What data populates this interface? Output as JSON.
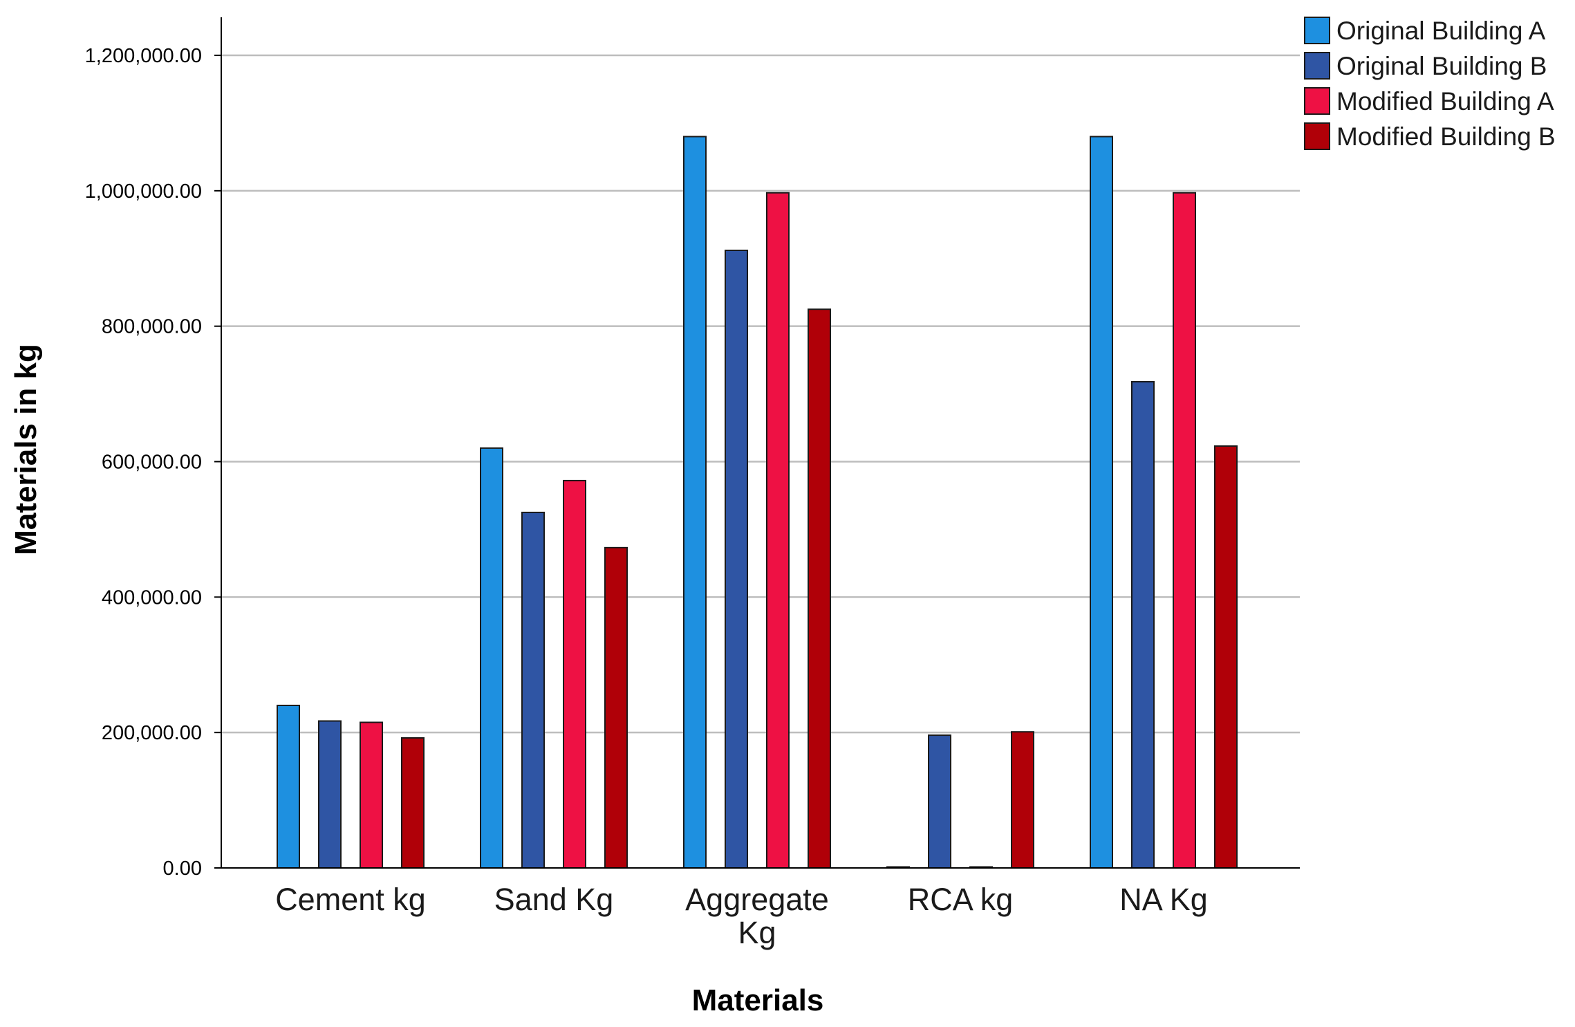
{
  "chart_data": {
    "type": "bar",
    "title": "",
    "xlabel": "Materials",
    "ylabel": "Materials in kg",
    "ylim": [
      0,
      1200000
    ],
    "yticks": [
      "0.00",
      "200,000.00",
      "400,000.00",
      "600,000.00",
      "800,000.00",
      "1,000,000.00",
      "1,200,000.00"
    ],
    "grid": true,
    "legend_position": "top-right",
    "categories": [
      [
        "Cement kg"
      ],
      [
        "Sand Kg"
      ],
      [
        "Aggregate",
        "Kg"
      ],
      [
        "RCA kg"
      ],
      [
        "NA Kg"
      ]
    ],
    "series": [
      {
        "name": "Original Building A",
        "color": "#1e90e0",
        "values": [
          240000,
          620000,
          1080000,
          0,
          1080000
        ]
      },
      {
        "name": "Original Building B",
        "color": "#2f55a4",
        "values": [
          217000,
          525000,
          912000,
          196000,
          718000
        ]
      },
      {
        "name": "Modified Building A",
        "color": "#ee1144",
        "values": [
          215000,
          572000,
          997000,
          0,
          997000
        ]
      },
      {
        "name": "Modified Building B",
        "color": "#b00008",
        "values": [
          192000,
          473000,
          825000,
          201000,
          623000
        ]
      }
    ]
  }
}
